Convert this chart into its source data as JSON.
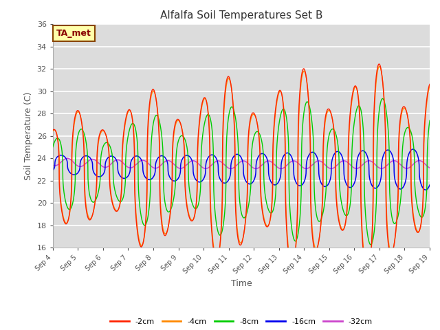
{
  "title": "Alfalfa Soil Temperatures Set B",
  "xlabel": "Time",
  "ylabel": "Soil Temperature (C)",
  "ylim": [
    16,
    36
  ],
  "yticks": [
    16,
    18,
    20,
    22,
    24,
    26,
    28,
    30,
    32,
    34,
    36
  ],
  "xtick_labels": [
    "Sep 4",
    "Sep 5",
    "Sep 6",
    "Sep 7",
    "Sep 8",
    "Sep 9",
    "Sep 10",
    "Sep 11",
    "Sep 12",
    "Sep 13",
    "Sep 14",
    "Sep 15",
    "Sep 16",
    "Sep 17",
    "Sep 18",
    "Sep 19"
  ],
  "bg_color": "#dcdcdc",
  "fig_color": "#ffffff",
  "grid_color": "#ffffff",
  "colors": {
    "-2cm": "#ff2200",
    "-4cm": "#ff8800",
    "-8cm": "#00cc00",
    "-16cm": "#0000ee",
    "-32cm": "#cc44cc"
  },
  "ta_met_box": {
    "text": "TA_met",
    "color": "#880000",
    "bg": "#ffffaa",
    "edgecolor": "#884400",
    "fontsize": 9
  },
  "mean_temp": 23.0,
  "n_points": 3000
}
